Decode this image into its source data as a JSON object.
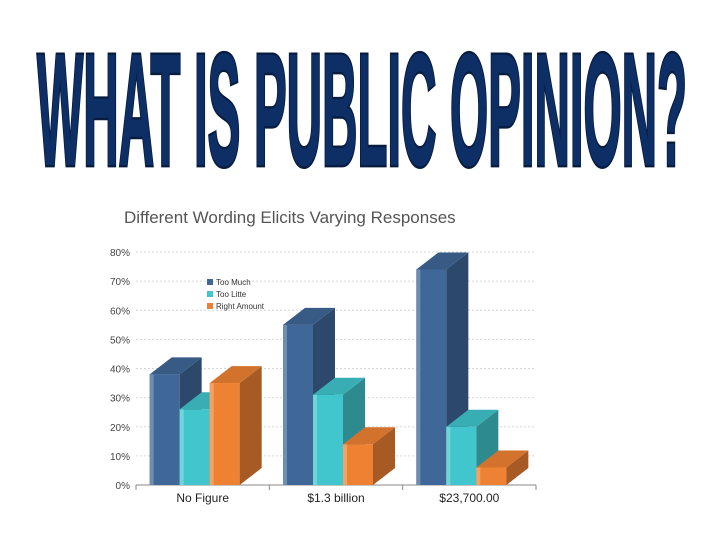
{
  "slide": {
    "title": "WHAT IS PUBLIC OPINION?"
  },
  "chart_data": {
    "type": "bar",
    "title": "Different Wording Elicits Varying Responses",
    "categories": [
      "No Figure",
      "$1.3 billion",
      "$23,700.00"
    ],
    "series": [
      {
        "name": "Too Much",
        "values": [
          38,
          55,
          74
        ],
        "color": "#3f6797"
      },
      {
        "name": "Too Litte",
        "values": [
          26,
          31,
          20
        ],
        "color": "#40c6cc"
      },
      {
        "name": "Right Amount",
        "values": [
          35,
          14,
          6
        ],
        "color": "#ef8132"
      }
    ],
    "y_ticks": [
      "0%",
      "10%",
      "20%",
      "30%",
      "40%",
      "50%",
      "60%",
      "70%",
      "80%"
    ],
    "ylim": [
      0,
      80
    ],
    "grid": true,
    "legend_position": "top-left",
    "three_d": true
  }
}
